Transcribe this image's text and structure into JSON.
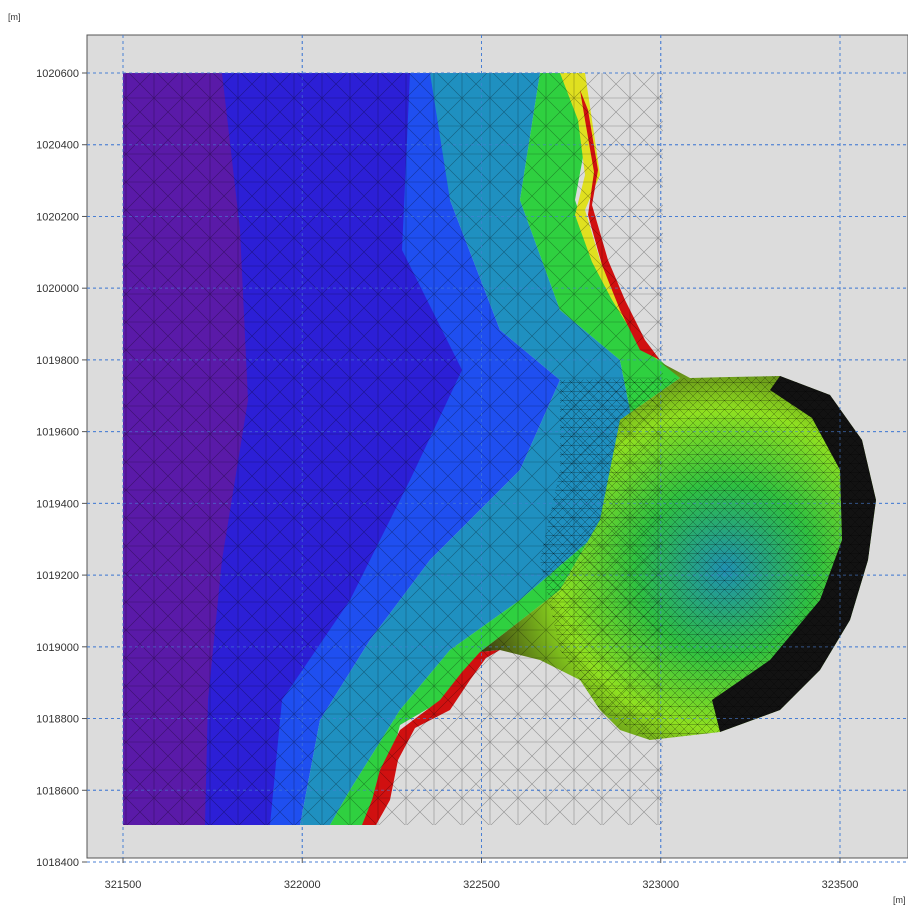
{
  "chart_data": {
    "type": "heatmap",
    "title": "",
    "xlabel": "",
    "ylabel": "",
    "x_unit": "[m]",
    "y_unit": "[m]",
    "xlim": [
      321400,
      323700
    ],
    "ylim": [
      1018400,
      1020700
    ],
    "x_ticks": [
      321500,
      322000,
      322500,
      323000,
      323500
    ],
    "x_tick_labels": [
      "321500",
      "322000",
      "322500",
      "323000",
      "323500"
    ],
    "y_ticks": [
      1018400,
      1018600,
      1018800,
      1019000,
      1019200,
      1019400,
      1019600,
      1019800,
      1020000,
      1020200,
      1020400,
      1020600
    ],
    "y_tick_labels": [
      "1018400",
      "1018600",
      "1018800",
      "1019000",
      "1019200",
      "1019400",
      "1019600",
      "1019800",
      "1020000",
      "1020200",
      "1020400",
      "1020600"
    ],
    "grid": true,
    "legend": "none",
    "mesh_extent": {
      "x": [
        321500,
        323600
      ],
      "y": [
        1018500,
        1020600
      ]
    },
    "color_scale": [
      "#5a1aa8",
      "#2c1fd6",
      "#1f3ff0",
      "#1f7fd0",
      "#1fb0a0",
      "#1fd060",
      "#6fe020",
      "#d0e020",
      "#f0a010",
      "#d01010",
      "#101010"
    ],
    "colors": {
      "plot_background": "#dcdcdc",
      "grid": "#4a7fd4",
      "deep": "#5a1aa8",
      "shallow": "#d01010",
      "mesh_lines": "#000000"
    }
  }
}
